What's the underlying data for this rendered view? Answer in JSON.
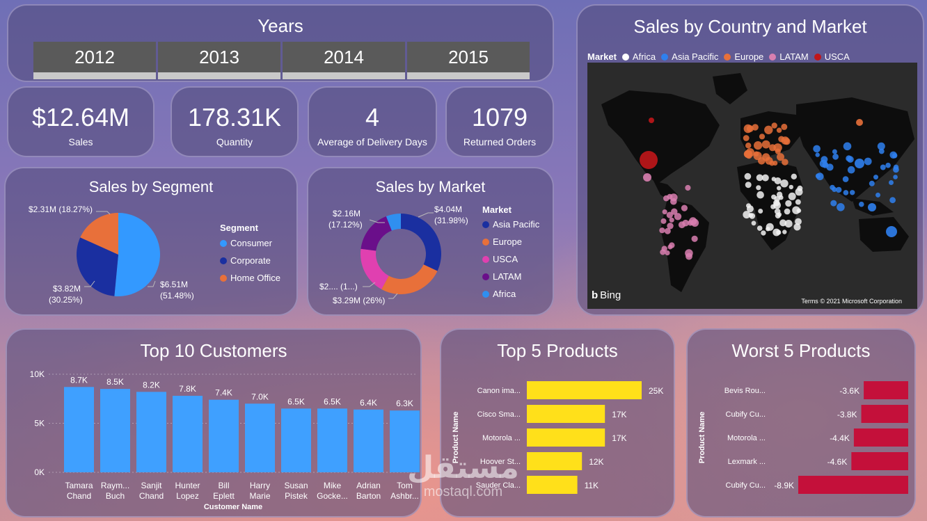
{
  "years": {
    "title": "Years",
    "options": [
      "2012",
      "2013",
      "2014",
      "2015"
    ]
  },
  "kpis": [
    {
      "value": "$12.64M",
      "label": "Sales"
    },
    {
      "value": "178.31K",
      "label": "Quantity"
    },
    {
      "value": "4",
      "label": "Average of Delivery Days"
    },
    {
      "value": "1079",
      "label": "Returned Orders"
    }
  ],
  "segment": {
    "title": "Sales by Segment",
    "legend_title": "Segment",
    "legend": [
      {
        "name": "Consumer",
        "color": "#3399ff"
      },
      {
        "name": "Corporate",
        "color": "#1a2fa0"
      },
      {
        "name": "Home Office",
        "color": "#e8703a"
      }
    ],
    "labels": {
      "home": [
        "$2.31M (18.27%)"
      ],
      "corporate": [
        "$3.82M",
        "(30.25%)"
      ],
      "consumer": [
        "$6.51M",
        "(51.48%)"
      ]
    }
  },
  "market": {
    "title": "Sales by Market",
    "legend_title": "Market",
    "legend": [
      {
        "name": "Asia Pacific",
        "color": "#1a2fa0"
      },
      {
        "name": "Europe",
        "color": "#e8703a"
      },
      {
        "name": "USCA",
        "color": "#e040b0"
      },
      {
        "name": "LATAM",
        "color": "#6a0f8a"
      },
      {
        "name": "Africa",
        "color": "#2f8ff0"
      }
    ],
    "labels": {
      "asia": [
        "$4.04M",
        "(31.98%)"
      ],
      "africa": [
        "$2.16M",
        "(17.12%)"
      ],
      "usca": [
        "$2.... (1...)"
      ],
      "europe": [
        "$3.29M (26%)"
      ]
    }
  },
  "map": {
    "title": "Sales by Country and Market",
    "legend_title": "Market",
    "legend": [
      {
        "name": "Africa",
        "color": "#ffffff"
      },
      {
        "name": "Asia Pacific",
        "color": "#2f80ee"
      },
      {
        "name": "Europe",
        "color": "#e8703a"
      },
      {
        "name": "LATAM",
        "color": "#d97fb0"
      },
      {
        "name": "USCA",
        "color": "#c0161a"
      }
    ],
    "bing": "Bing",
    "copyright": "Terms  © 2021 Microsoft Corporation"
  },
  "chart_data": [
    {
      "type": "pie",
      "title": "Sales by Segment",
      "categories": [
        "Consumer",
        "Corporate",
        "Home Office"
      ],
      "values": [
        6.51,
        3.82,
        2.31
      ],
      "percents": [
        51.48,
        30.25,
        18.27
      ],
      "colors": [
        "#3399ff",
        "#1a2fa0",
        "#e8703a"
      ]
    },
    {
      "type": "pie",
      "title": "Sales by Market",
      "categories": [
        "Asia Pacific",
        "Europe",
        "USCA",
        "LATAM",
        "Africa"
      ],
      "values": [
        4.04,
        3.29,
        2.4,
        2.16,
        0.75
      ],
      "colors": [
        "#1a2fa0",
        "#e8703a",
        "#e040b0",
        "#6a0f8a",
        "#2f8ff0"
      ]
    },
    {
      "type": "bar",
      "title": "Top 10 Customers",
      "xlabel": "Customer Name",
      "categories": [
        [
          "Tamara",
          "Chand"
        ],
        [
          "Raym...",
          "Buch"
        ],
        [
          "Sanjit",
          "Chand"
        ],
        [
          "Hunter",
          "Lopez"
        ],
        [
          "Bill",
          "Eplett"
        ],
        [
          "Harry",
          "Marie"
        ],
        [
          "Susan",
          "Pistek"
        ],
        [
          "Mike",
          "Gocke..."
        ],
        [
          "Adrian",
          "Barton"
        ],
        [
          "Tom",
          "Ashbr..."
        ]
      ],
      "values": [
        8.7,
        8.5,
        8.2,
        7.8,
        7.4,
        7.0,
        6.5,
        6.5,
        6.4,
        6.3
      ],
      "value_labels": [
        "8.7K",
        "8.5K",
        "8.2K",
        "7.8K",
        "7.4K",
        "7.0K",
        "6.5K",
        "6.5K",
        "6.4K",
        "6.3K"
      ],
      "yticks": [
        "0K",
        "5K",
        "10K"
      ],
      "ylim": [
        0,
        10
      ],
      "color": "#3fa0ff"
    },
    {
      "type": "bar",
      "title": "Top 5 Products",
      "ylabel": "Product Name",
      "categories": [
        "Canon ima...",
        "Cisco Sma...",
        "Motorola ...",
        "Hoover St...",
        "Sauder Cla..."
      ],
      "values": [
        25,
        17,
        17,
        12,
        11
      ],
      "value_labels": [
        "25K",
        "17K",
        "17K",
        "12K",
        "11K"
      ],
      "color": "#ffe01a"
    },
    {
      "type": "bar",
      "title": "Worst 5 Products",
      "ylabel": "Product Name",
      "categories": [
        "Bevis Rou...",
        "Cubify Cu...",
        "Motorola ...",
        "Lexmark ...",
        "Cubify Cu..."
      ],
      "values": [
        -3.6,
        -3.8,
        -4.4,
        -4.6,
        -8.9
      ],
      "value_labels": [
        "-3.6K",
        "-3.8K",
        "-4.4K",
        "-4.6K",
        "-8.9K"
      ],
      "color": "#c4103a"
    }
  ],
  "watermark": {
    "arabic": "مستقل",
    "latin": "mostaql.com"
  }
}
